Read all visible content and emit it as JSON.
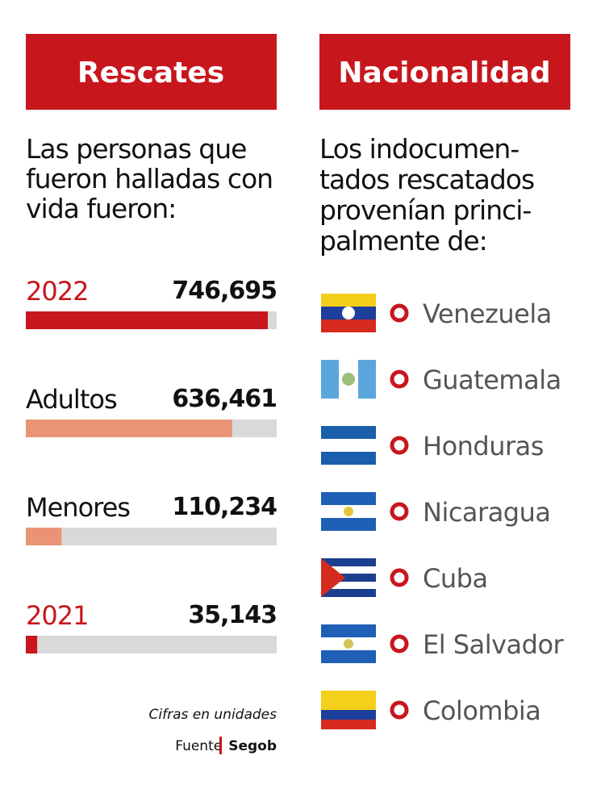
{
  "left": {
    "header": "Rescates",
    "intro": [
      "Las personas que",
      "fueron halladas con",
      "vida fueron:"
    ],
    "note": "Cifras en unidades",
    "source_label": "Fuente",
    "source": "Segob"
  },
  "chart_data": {
    "type": "bar",
    "orientation": "horizontal",
    "categories": [
      "2022",
      "Adultos",
      "Menores",
      "2021"
    ],
    "category_colors": [
      "#c8161d",
      "#111111",
      "#111111",
      "#c8161d"
    ],
    "values": [
      746695,
      636461,
      110234,
      35143
    ],
    "value_labels": [
      "746,695",
      "636,461",
      "110,234",
      "35,143"
    ],
    "colors": [
      "#c8161d",
      "#ea9377",
      "#ea9377",
      "#c8161d"
    ],
    "track_color": "#d9d9d9",
    "xlim": [
      0,
      774000
    ]
  },
  "right": {
    "header": "Nacionalidad",
    "intro": [
      "Los indocumen-",
      "tados rescatados",
      "provenían princi-",
      "palmente de:"
    ],
    "countries": [
      "Venezuela",
      "Guatemala",
      "Honduras",
      "Nicaragua",
      "Cuba",
      "El Salvador",
      "Colombia"
    ]
  }
}
